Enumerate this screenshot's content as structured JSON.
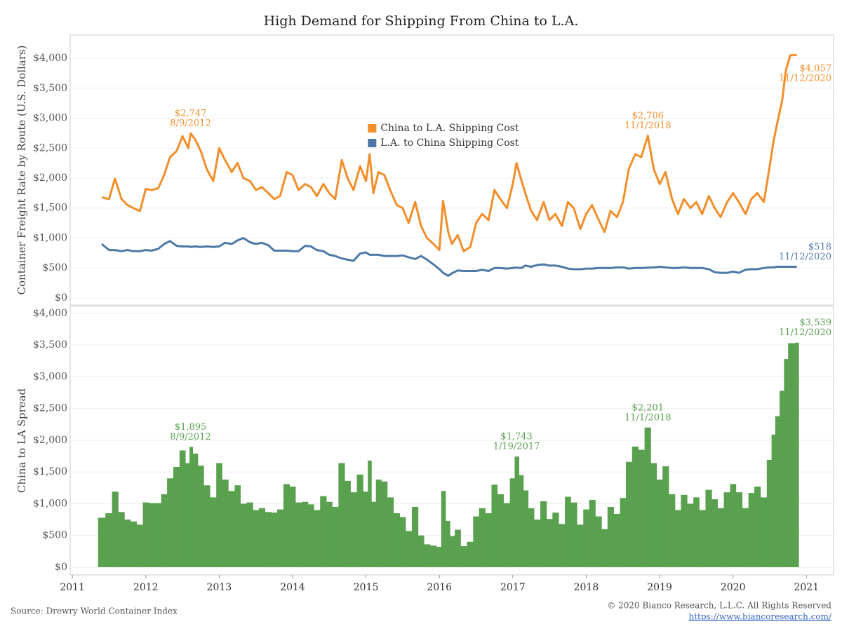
{
  "title": "High Demand for Shipping From China to L.A.",
  "source": "Source: Drewry World Container Index",
  "copyright": "© 2020 Bianco Research, L.L.C. All Rights Reserved",
  "url": "https://www.biancoresearch.com/",
  "chart_data": [
    {
      "type": "line",
      "ylabel": "Container Freight Rate by Route (U.S. Dollars)",
      "xlim": [
        2010.97,
        2021.37
      ],
      "ylim": [
        -117,
        4386
      ],
      "yticks": [
        {
          "value": 0,
          "label": "$0"
        },
        {
          "value": 500,
          "label": "$500"
        },
        {
          "value": 1000,
          "label": "$1,000"
        },
        {
          "value": 1500,
          "label": "$1,500"
        },
        {
          "value": 2000,
          "label": "$2,000"
        },
        {
          "value": 2500,
          "label": "$2,500"
        },
        {
          "value": 3000,
          "label": "$3,000"
        },
        {
          "value": 3500,
          "label": "$3,500"
        },
        {
          "value": 4000,
          "label": "$4,000"
        }
      ],
      "grid": true,
      "legend": "upper center",
      "x": [
        2011.4,
        2011.5,
        2011.58,
        2011.67,
        2011.75,
        2011.83,
        2011.92,
        2012.0,
        2012.08,
        2012.17,
        2012.25,
        2012.33,
        2012.42,
        2012.5,
        2012.58,
        2012.61,
        2012.67,
        2012.75,
        2012.83,
        2012.92,
        2013.0,
        2013.08,
        2013.17,
        2013.25,
        2013.33,
        2013.42,
        2013.5,
        2013.58,
        2013.67,
        2013.75,
        2013.83,
        2013.92,
        2014.0,
        2014.08,
        2014.17,
        2014.25,
        2014.33,
        2014.42,
        2014.5,
        2014.58,
        2014.67,
        2014.75,
        2014.83,
        2014.92,
        2015.0,
        2015.05,
        2015.1,
        2015.17,
        2015.25,
        2015.33,
        2015.42,
        2015.5,
        2015.58,
        2015.67,
        2015.75,
        2015.83,
        2015.92,
        2016.0,
        2016.05,
        2016.12,
        2016.17,
        2016.25,
        2016.33,
        2016.42,
        2016.5,
        2016.58,
        2016.67,
        2016.75,
        2016.83,
        2016.92,
        2017.0,
        2017.05,
        2017.12,
        2017.17,
        2017.25,
        2017.33,
        2017.42,
        2017.5,
        2017.58,
        2017.67,
        2017.75,
        2017.83,
        2017.92,
        2018.0,
        2018.08,
        2018.17,
        2018.25,
        2018.33,
        2018.42,
        2018.5,
        2018.58,
        2018.67,
        2018.75,
        2018.84,
        2018.92,
        2019.0,
        2019.08,
        2019.17,
        2019.25,
        2019.33,
        2019.42,
        2019.5,
        2019.58,
        2019.67,
        2019.75,
        2019.83,
        2019.92,
        2020.0,
        2020.08,
        2020.17,
        2020.25,
        2020.33,
        2020.42,
        2020.5,
        2020.55,
        2020.6,
        2020.67,
        2020.72,
        2020.78,
        2020.82,
        2020.87
      ],
      "series": [
        {
          "name": "China to L.A. Shipping Cost",
          "color": "#f28e2b",
          "values": [
            1680,
            1650,
            1990,
            1650,
            1550,
            1500,
            1450,
            1820,
            1800,
            1830,
            2050,
            2350,
            2450,
            2700,
            2500,
            2747,
            2650,
            2450,
            2150,
            1950,
            2500,
            2300,
            2100,
            2250,
            2000,
            1950,
            1800,
            1850,
            1750,
            1650,
            1700,
            2100,
            2050,
            1800,
            1900,
            1850,
            1700,
            1900,
            1750,
            1650,
            2300,
            2000,
            1800,
            2200,
            1950,
            2400,
            1750,
            2100,
            2050,
            1800,
            1550,
            1500,
            1250,
            1600,
            1200,
            1000,
            900,
            800,
            1620,
            1100,
            900,
            1050,
            780,
            850,
            1250,
            1400,
            1300,
            1800,
            1650,
            1500,
            1900,
            2250,
            1950,
            1750,
            1450,
            1300,
            1600,
            1300,
            1400,
            1200,
            1600,
            1500,
            1150,
            1400,
            1550,
            1300,
            1100,
            1450,
            1350,
            1600,
            2150,
            2400,
            2350,
            2706,
            2150,
            1900,
            2100,
            1650,
            1400,
            1650,
            1500,
            1600,
            1400,
            1700,
            1500,
            1350,
            1600,
            1750,
            1600,
            1400,
            1650,
            1750,
            1600,
            2200,
            2600,
            2900,
            3300,
            3800,
            4050,
            4050,
            4057
          ]
        },
        {
          "name": "L.A. to China Shipping Cost",
          "color": "#4e79a7",
          "values": [
            900,
            800,
            800,
            780,
            800,
            780,
            780,
            800,
            790,
            820,
            900,
            950,
            870,
            860,
            860,
            852,
            860,
            850,
            860,
            850,
            860,
            920,
            900,
            960,
            1000,
            930,
            900,
            920,
            880,
            790,
            790,
            790,
            780,
            780,
            870,
            860,
            800,
            780,
            720,
            700,
            660,
            640,
            620,
            740,
            760,
            720,
            720,
            720,
            700,
            700,
            700,
            710,
            680,
            650,
            700,
            640,
            560,
            480,
            420,
            370,
            410,
            460,
            450,
            450,
            450,
            470,
            450,
            500,
            500,
            490,
            500,
            507,
            500,
            540,
            520,
            550,
            560,
            540,
            540,
            520,
            490,
            480,
            480,
            490,
            490,
            500,
            500,
            500,
            510,
            510,
            490,
            500,
            500,
            505,
            510,
            520,
            510,
            500,
            500,
            510,
            500,
            500,
            500,
            480,
            430,
            420,
            420,
            440,
            420,
            470,
            480,
            480,
            500,
            510,
            510,
            520,
            520,
            520,
            520,
            520,
            518
          ]
        }
      ],
      "annotations": [
        {
          "series": 0,
          "x": 2012.61,
          "value": 2747,
          "label": "$2,747",
          "date": "8/9/2012"
        },
        {
          "series": 0,
          "x": 2018.84,
          "value": 2706,
          "label": "$2,706",
          "date": "11/1/2018"
        },
        {
          "series": 0,
          "x": 2020.87,
          "value": 4057,
          "label": "$4,057",
          "date": "11/12/2020"
        },
        {
          "series": 1,
          "x": 2020.87,
          "value": 518,
          "label": "$518",
          "date": "11/12/2020"
        }
      ]
    },
    {
      "type": "bar",
      "ylabel": "China to LA Spread",
      "color": "#59a14f",
      "xlim": [
        2010.97,
        2021.37
      ],
      "xticks": [
        2011,
        2012,
        2013,
        2014,
        2015,
        2016,
        2017,
        2018,
        2019,
        2020,
        2021
      ],
      "ylim": [
        -122,
        4110
      ],
      "yticks": [
        {
          "value": 0,
          "label": "$0"
        },
        {
          "value": 500,
          "label": "$500"
        },
        {
          "value": 1000,
          "label": "$1,000"
        },
        {
          "value": 1500,
          "label": "$1,500"
        },
        {
          "value": 2000,
          "label": "$2,000"
        },
        {
          "value": 2500,
          "label": "$2,500"
        },
        {
          "value": 3000,
          "label": "$3,000"
        },
        {
          "value": 3500,
          "label": "$3,500"
        },
        {
          "value": 4000,
          "label": "$4,000"
        }
      ],
      "grid": true,
      "x": [
        2011.4,
        2011.5,
        2011.58,
        2011.67,
        2011.75,
        2011.83,
        2011.92,
        2012.0,
        2012.08,
        2012.17,
        2012.25,
        2012.33,
        2012.42,
        2012.5,
        2012.58,
        2012.61,
        2012.67,
        2012.75,
        2012.83,
        2012.92,
        2013.0,
        2013.08,
        2013.17,
        2013.25,
        2013.33,
        2013.42,
        2013.5,
        2013.58,
        2013.67,
        2013.75,
        2013.83,
        2013.92,
        2014.0,
        2014.08,
        2014.17,
        2014.25,
        2014.33,
        2014.42,
        2014.5,
        2014.58,
        2014.67,
        2014.75,
        2014.83,
        2014.92,
        2015.0,
        2015.05,
        2015.1,
        2015.17,
        2015.25,
        2015.33,
        2015.42,
        2015.5,
        2015.58,
        2015.67,
        2015.75,
        2015.83,
        2015.92,
        2016.0,
        2016.05,
        2016.12,
        2016.17,
        2016.25,
        2016.33,
        2016.42,
        2016.5,
        2016.58,
        2016.67,
        2016.75,
        2016.83,
        2016.92,
        2017.0,
        2017.05,
        2017.12,
        2017.17,
        2017.25,
        2017.33,
        2017.42,
        2017.5,
        2017.58,
        2017.67,
        2017.75,
        2017.83,
        2017.92,
        2018.0,
        2018.08,
        2018.17,
        2018.25,
        2018.33,
        2018.42,
        2018.5,
        2018.58,
        2018.67,
        2018.75,
        2018.84,
        2018.92,
        2019.0,
        2019.08,
        2019.17,
        2019.25,
        2019.33,
        2019.42,
        2019.5,
        2019.58,
        2019.67,
        2019.75,
        2019.83,
        2019.92,
        2020.0,
        2020.08,
        2020.17,
        2020.25,
        2020.33,
        2020.42,
        2020.5,
        2020.55,
        2020.6,
        2020.67,
        2020.72,
        2020.78,
        2020.82,
        2020.87
      ],
      "values": [
        780,
        850,
        1190,
        870,
        750,
        720,
        670,
        1020,
        1010,
        1010,
        1150,
        1400,
        1580,
        1840,
        1640,
        1895,
        1790,
        1600,
        1290,
        1100,
        1640,
        1380,
        1200,
        1290,
        1000,
        1020,
        900,
        930,
        870,
        860,
        910,
        1310,
        1270,
        1020,
        1030,
        990,
        900,
        1120,
        1030,
        950,
        1640,
        1360,
        1180,
        1460,
        1190,
        1680,
        1030,
        1380,
        1350,
        1100,
        850,
        790,
        570,
        950,
        500,
        360,
        340,
        320,
        1200,
        730,
        490,
        590,
        330,
        400,
        800,
        930,
        850,
        1300,
        1150,
        1010,
        1400,
        1743,
        1450,
        1210,
        930,
        750,
        1040,
        760,
        860,
        680,
        1110,
        1020,
        670,
        910,
        1060,
        800,
        600,
        950,
        840,
        1090,
        1660,
        1900,
        1850,
        2201,
        1640,
        1380,
        1590,
        1150,
        900,
        1140,
        1000,
        1100,
        900,
        1220,
        1070,
        930,
        1180,
        1310,
        1180,
        930,
        1170,
        1270,
        1100,
        1690,
        2090,
        2380,
        2780,
        3280,
        3530,
        3530,
        3539
      ],
      "annotations": [
        {
          "x": 2012.61,
          "value": 1895,
          "label": "$1,895",
          "date": "8/9/2012"
        },
        {
          "x": 2017.05,
          "value": 1743,
          "label": "$1,743",
          "date": "1/19/2017"
        },
        {
          "x": 2018.84,
          "value": 2201,
          "label": "$2,201",
          "date": "11/1/2018"
        },
        {
          "x": 2020.87,
          "value": 3539,
          "label": "$3,539",
          "date": "11/12/2020"
        }
      ]
    }
  ]
}
